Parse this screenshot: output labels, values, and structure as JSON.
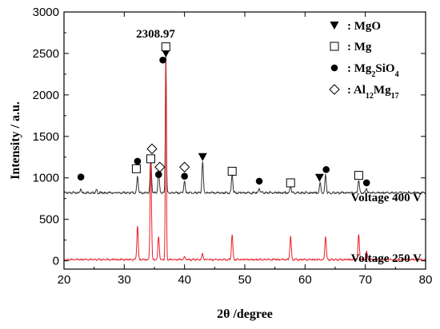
{
  "chart_data": {
    "type": "line",
    "xlabel": "2θ /degree",
    "ylabel": "Intensity / a.u.",
    "xlim": [
      20,
      80
    ],
    "ylim": [
      -100,
      3000
    ],
    "x_ticks": [
      20,
      30,
      40,
      50,
      60,
      70,
      80
    ],
    "y_ticks": [
      0,
      500,
      1000,
      1500,
      2000,
      2500,
      3000
    ],
    "grid": false,
    "legend_position": "top-right",
    "peak_annotation": {
      "text": "2308.97",
      "x": 36.8
    },
    "colors": {
      "voltage_400": "#333333",
      "voltage_250": "#e8202a"
    },
    "series": [
      {
        "name": "Voltage 400 V",
        "baseline": 820,
        "peaks": [
          [
            22.8,
            45
          ],
          [
            25.4,
            30
          ],
          [
            32.2,
            200
          ],
          [
            34.4,
            440
          ],
          [
            35.7,
            290
          ],
          [
            36.9,
            1700
          ],
          [
            40.0,
            150
          ],
          [
            43.0,
            380
          ],
          [
            47.9,
            220
          ],
          [
            52.4,
            60
          ],
          [
            57.6,
            80
          ],
          [
            62.5,
            120
          ],
          [
            63.4,
            220
          ],
          [
            68.9,
            160
          ],
          [
            70.2,
            60
          ]
        ]
      },
      {
        "name": "Voltage 250 V",
        "baseline": 15,
        "peaks": [
          [
            32.2,
            410
          ],
          [
            34.4,
            1220
          ],
          [
            35.7,
            280
          ],
          [
            36.9,
            2420
          ],
          [
            40.0,
            35
          ],
          [
            43.0,
            70
          ],
          [
            47.9,
            300
          ],
          [
            57.6,
            280
          ],
          [
            63.4,
            280
          ],
          [
            68.9,
            300
          ],
          [
            70.2,
            100
          ]
        ]
      }
    ],
    "legend": [
      {
        "marker": "filled-triangle-down",
        "label": "MgO"
      },
      {
        "marker": "open-square",
        "label": "Mg"
      },
      {
        "marker": "filled-circle",
        "label": "Mg2SiO4"
      },
      {
        "marker": "open-diamond",
        "label": "Al12Mg17"
      }
    ],
    "phase_markers": [
      {
        "marker": "filled-circle",
        "x": 22.8,
        "y": 1010
      },
      {
        "marker": "open-square",
        "x": 32.0,
        "y": 1110
      },
      {
        "marker": "filled-circle",
        "x": 32.2,
        "y": 1200
      },
      {
        "marker": "open-square",
        "x": 34.4,
        "y": 1230
      },
      {
        "marker": "open-diamond",
        "x": 34.6,
        "y": 1350
      },
      {
        "marker": "filled-circle",
        "x": 35.7,
        "y": 1040
      },
      {
        "marker": "open-diamond",
        "x": 35.9,
        "y": 1130
      },
      {
        "marker": "filled-circle",
        "x": 36.4,
        "y": 2420
      },
      {
        "marker": "filled-triangle-down",
        "x": 36.9,
        "y": 2500
      },
      {
        "marker": "open-square",
        "x": 36.9,
        "y": 2580
      },
      {
        "marker": "filled-circle",
        "x": 40.0,
        "y": 1020
      },
      {
        "marker": "open-diamond",
        "x": 40.0,
        "y": 1130
      },
      {
        "marker": "filled-triangle-down",
        "x": 43.0,
        "y": 1250
      },
      {
        "marker": "open-square",
        "x": 47.9,
        "y": 1080
      },
      {
        "marker": "filled-circle",
        "x": 52.4,
        "y": 960
      },
      {
        "marker": "open-square",
        "x": 57.6,
        "y": 940
      },
      {
        "marker": "filled-triangle-down",
        "x": 62.4,
        "y": 1000
      },
      {
        "marker": "filled-circle",
        "x": 63.5,
        "y": 1100
      },
      {
        "marker": "open-square",
        "x": 68.9,
        "y": 1030
      },
      {
        "marker": "filled-circle",
        "x": 70.2,
        "y": 940
      }
    ]
  }
}
